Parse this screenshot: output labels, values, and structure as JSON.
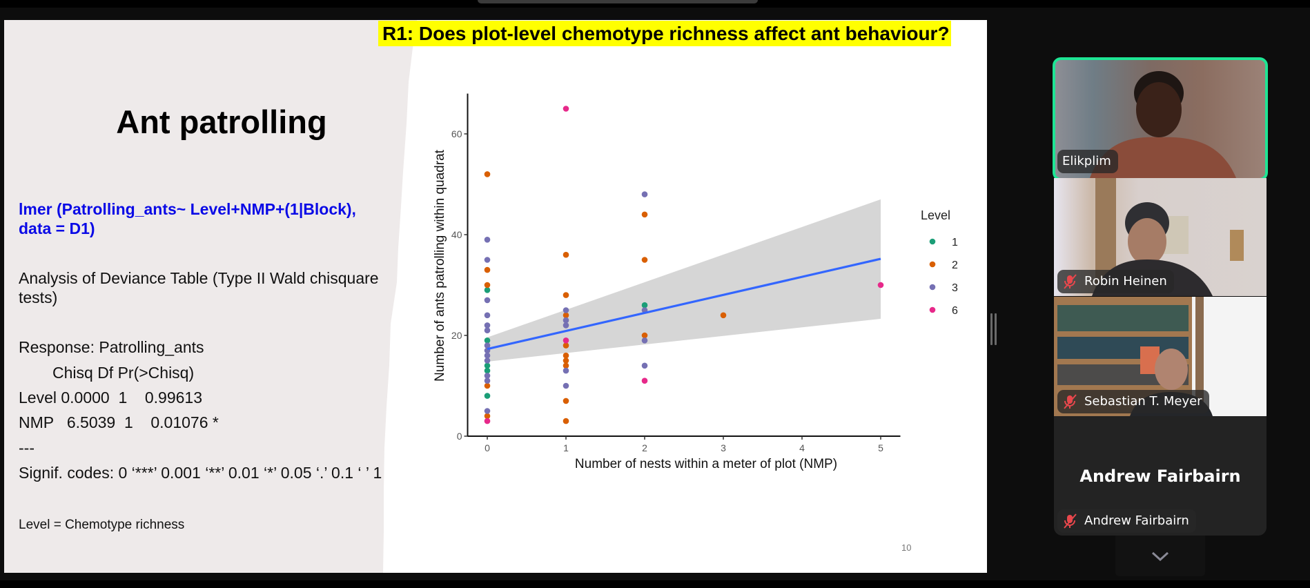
{
  "slide": {
    "title": "R1:  Does plot-level chemotype richness affect ant behaviour?",
    "heading": "Ant patrolling",
    "model_line1": "lmer (Patrolling_ants~ Level+NMP+(1|Block),",
    "model_line2": "data = D1)",
    "analysis_line1": "Analysis of Deviance Table (Type II Wald chisquare",
    "analysis_line2": "tests)",
    "response": "Response: Patrolling_ants",
    "table_header": "Chisq Df Pr(>Chisq)",
    "row_level": "Level 0.0000  1    0.99613",
    "row_nmp": "NMP   6.5039  1    0.01076 *",
    "separator": "---",
    "signif": "Signif. codes:  0 ‘***’ 0.001 ‘**’ 0.01 ‘*’ 0.05 ‘.’ 0.1 ‘ ’ 1",
    "footnote": "Level = Chemotype richness",
    "slide_number": "10",
    "colors": {
      "highlight": "#ffff00",
      "model_text": "#0a0ae6",
      "left_panel": "#eeeaea"
    }
  },
  "chart_data": {
    "type": "scatter",
    "title": "",
    "xlabel": "Number of nests within a meter of plot (NMP)",
    "ylabel": "Number of ants patrolling within quadrat",
    "xlim": [
      -0.25,
      5.25
    ],
    "ylim": [
      0,
      68
    ],
    "x_ticks": [
      "0",
      "1",
      "2",
      "3",
      "4",
      "5"
    ],
    "y_ticks": [
      "0",
      "20",
      "40",
      "60"
    ],
    "grid": false,
    "legend": {
      "title": "Level",
      "position": "right",
      "entries": [
        "1",
        "2",
        "3",
        "6"
      ]
    },
    "series": [
      {
        "name": "1",
        "color": "#1b9e77",
        "points": [
          [
            0,
            29
          ],
          [
            0,
            19
          ],
          [
            0,
            14
          ],
          [
            0,
            13
          ],
          [
            0,
            8
          ],
          [
            2,
            26
          ]
        ]
      },
      {
        "name": "2",
        "color": "#d95f02",
        "points": [
          [
            0,
            52
          ],
          [
            0,
            33
          ],
          [
            0,
            30
          ],
          [
            0,
            10
          ],
          [
            0,
            4
          ],
          [
            1,
            36
          ],
          [
            1,
            28
          ],
          [
            1,
            24
          ],
          [
            1,
            18
          ],
          [
            1,
            16
          ],
          [
            1,
            15
          ],
          [
            1,
            14
          ],
          [
            1,
            7
          ],
          [
            1,
            3
          ],
          [
            2,
            44
          ],
          [
            2,
            35
          ],
          [
            2,
            20
          ],
          [
            3,
            24
          ]
        ]
      },
      {
        "name": "3",
        "color": "#7570b3",
        "points": [
          [
            0,
            39
          ],
          [
            0,
            35
          ],
          [
            0,
            27
          ],
          [
            0,
            24
          ],
          [
            0,
            22
          ],
          [
            0,
            21
          ],
          [
            0,
            18
          ],
          [
            0,
            17
          ],
          [
            0,
            16
          ],
          [
            0,
            15
          ],
          [
            0,
            12
          ],
          [
            0,
            11
          ],
          [
            0,
            5
          ],
          [
            1,
            25
          ],
          [
            1,
            23
          ],
          [
            1,
            22
          ],
          [
            1,
            13
          ],
          [
            1,
            10
          ],
          [
            2,
            48
          ],
          [
            2,
            25
          ],
          [
            2,
            19
          ],
          [
            2,
            14
          ]
        ]
      },
      {
        "name": "6",
        "color": "#e7298a",
        "points": [
          [
            0,
            3
          ],
          [
            1,
            65
          ],
          [
            1,
            19
          ],
          [
            2,
            11
          ],
          [
            5,
            30
          ]
        ]
      }
    ],
    "fit_line": {
      "color": "#3366ff",
      "x": [
        0,
        5
      ],
      "y": [
        17.3,
        35.2
      ]
    },
    "confidence_band": {
      "color": "#cccccc",
      "x": [
        0,
        5
      ],
      "lower": [
        14.8,
        23.3
      ],
      "upper": [
        19.6,
        47.0
      ]
    }
  },
  "participants": [
    {
      "name": "Elikplim",
      "active_speaker": true,
      "muted": false,
      "video": true
    },
    {
      "name": "Robin Heinen",
      "active_speaker": false,
      "muted": true,
      "video": true
    },
    {
      "name": "Sebastian T. Meyer",
      "active_speaker": false,
      "muted": true,
      "video": true
    },
    {
      "name": "Andrew Fairbairn",
      "active_speaker": false,
      "muted": true,
      "video": false
    }
  ],
  "ui": {
    "speaker_border_color": "#1ee594",
    "mute_icon_color": "#e8474c",
    "scroll_down_icon": "chevron-down-icon"
  }
}
